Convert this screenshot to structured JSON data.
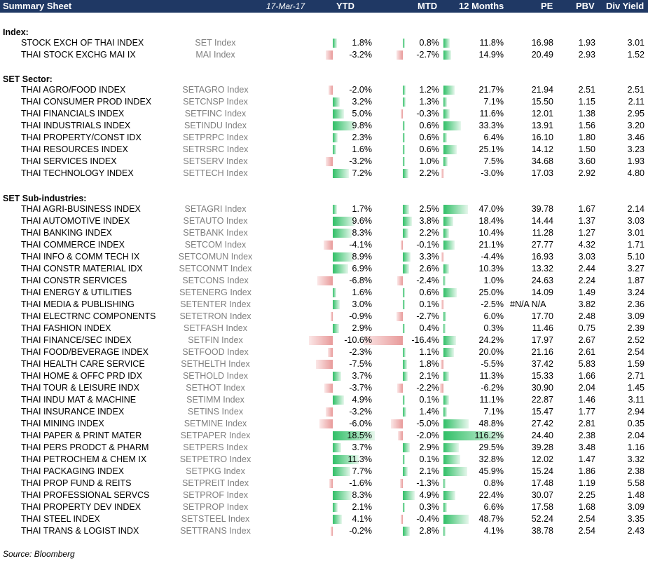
{
  "header": {
    "title": "Summary Sheet",
    "date": "17-Mar-17",
    "columns": [
      "YTD",
      "MTD",
      "12 Months",
      "PE",
      "PBV",
      "Div Yield"
    ]
  },
  "sections": [
    {
      "title": "Index:",
      "rows": [
        {
          "name": "STOCK EXCH OF THAI INDEX",
          "ticker": "SET Index",
          "ytd": "1.8%",
          "mtd": "0.8%",
          "m12": "11.8%",
          "pe": "16.98",
          "pbv": "1.93",
          "dy": "3.01"
        },
        {
          "name": "THAI STOCK EXCHG MAI IX",
          "ticker": "MAI Index",
          "ytd": "-3.2%",
          "mtd": "-2.7%",
          "m12": "14.9%",
          "pe": "20.49",
          "pbv": "2.93",
          "dy": "1.52"
        }
      ]
    },
    {
      "title": "SET Sector:",
      "rows": [
        {
          "name": "THAI AGRO/FOOD INDEX",
          "ticker": "SETAGRO Index",
          "ytd": "-2.0%",
          "mtd": "1.2%",
          "m12": "21.7%",
          "pe": "21.94",
          "pbv": "2.51",
          "dy": "2.51"
        },
        {
          "name": "THAI CONSUMER PROD INDEX",
          "ticker": "SETCNSP Index",
          "ytd": "3.2%",
          "mtd": "1.3%",
          "m12": "7.1%",
          "pe": "15.50",
          "pbv": "1.15",
          "dy": "2.11"
        },
        {
          "name": "THAI FINANCIALS INDEX",
          "ticker": "SETFINC Index",
          "ytd": "5.0%",
          "mtd": "-0.3%",
          "m12": "11.6%",
          "pe": "12.01",
          "pbv": "1.38",
          "dy": "2.95"
        },
        {
          "name": "THAI INDUSTRIALS INDEX",
          "ticker": "SETINDU Index",
          "ytd": "9.8%",
          "mtd": "0.6%",
          "m12": "33.3%",
          "pe": "13.91",
          "pbv": "1.56",
          "dy": "3.20"
        },
        {
          "name": "THAI PROPERTY/CONST IDX",
          "ticker": "SETPRPC Index",
          "ytd": "2.3%",
          "mtd": "0.6%",
          "m12": "6.4%",
          "pe": "16.10",
          "pbv": "1.80",
          "dy": "3.46"
        },
        {
          "name": "THAI RESOURCES INDEX",
          "ticker": "SETRSRC Index",
          "ytd": "1.6%",
          "mtd": "0.6%",
          "m12": "25.1%",
          "pe": "14.12",
          "pbv": "1.50",
          "dy": "3.23"
        },
        {
          "name": "THAI SERVICES INDEX",
          "ticker": "SETSERV Index",
          "ytd": "-3.2%",
          "mtd": "1.0%",
          "m12": "7.5%",
          "pe": "34.68",
          "pbv": "3.60",
          "dy": "1.93"
        },
        {
          "name": "THAI TECHNOLOGY INDEX",
          "ticker": "SETTECH Index",
          "ytd": "7.2%",
          "mtd": "2.2%",
          "m12": "-3.0%",
          "pe": "17.03",
          "pbv": "2.92",
          "dy": "4.80"
        }
      ]
    },
    {
      "title": "SET Sub-industries:",
      "rows": [
        {
          "name": "THAI AGRI-BUSINESS INDEX",
          "ticker": "SETAGRI Index",
          "ytd": "1.7%",
          "mtd": "2.5%",
          "m12": "47.0%",
          "pe": "39.78",
          "pbv": "1.67",
          "dy": "2.14"
        },
        {
          "name": "THAI AUTOMOTIVE INDEX",
          "ticker": "SETAUTO Index",
          "ytd": "9.6%",
          "mtd": "3.8%",
          "m12": "18.4%",
          "pe": "14.44",
          "pbv": "1.37",
          "dy": "3.03"
        },
        {
          "name": "THAI BANKING INDEX",
          "ticker": "SETBANK Index",
          "ytd": "8.3%",
          "mtd": "2.2%",
          "m12": "10.4%",
          "pe": "11.28",
          "pbv": "1.27",
          "dy": "3.01"
        },
        {
          "name": "THAI COMMERCE INDEX",
          "ticker": "SETCOM Index",
          "ytd": "-4.1%",
          "mtd": "-0.1%",
          "m12": "21.1%",
          "pe": "27.77",
          "pbv": "4.32",
          "dy": "1.71"
        },
        {
          "name": "THAI INFO & COMM TECH IX",
          "ticker": "SETCOMUN Index",
          "ytd": "8.9%",
          "mtd": "3.3%",
          "m12": "-4.4%",
          "pe": "16.93",
          "pbv": "3.03",
          "dy": "5.10"
        },
        {
          "name": "THAI CONSTR MATERIAL IDX",
          "ticker": "SETCONMT Index",
          "ytd": "6.9%",
          "mtd": "2.6%",
          "m12": "10.3%",
          "pe": "13.32",
          "pbv": "2.44",
          "dy": "3.27"
        },
        {
          "name": "THAI CONSTR SERVICES",
          "ticker": "SETCONS Index",
          "ytd": "-6.8%",
          "mtd": "-2.4%",
          "m12": "1.0%",
          "pe": "24.63",
          "pbv": "2.24",
          "dy": "1.87"
        },
        {
          "name": "THAI ENERGY & UTILITIES",
          "ticker": "SETENERG Index",
          "ytd": "1.6%",
          "mtd": "0.6%",
          "m12": "25.0%",
          "pe": "14.09",
          "pbv": "1.49",
          "dy": "3.24"
        },
        {
          "name": "THAI MEDIA & PUBLISHING",
          "ticker": "SETENTER Index",
          "ytd": "3.0%",
          "mtd": "0.1%",
          "m12": "-2.5%",
          "pe": "#N/A N/A",
          "pbv": "3.82",
          "dy": "2.36"
        },
        {
          "name": "THAI ELECTRNC COMPONENTS",
          "ticker": "SETETRON Index",
          "ytd": "-0.9%",
          "mtd": "-2.7%",
          "m12": "6.0%",
          "pe": "17.70",
          "pbv": "2.48",
          "dy": "3.09"
        },
        {
          "name": "THAI FASHION INDEX",
          "ticker": "SETFASH Index",
          "ytd": "2.9%",
          "mtd": "0.4%",
          "m12": "0.3%",
          "pe": "11.46",
          "pbv": "0.75",
          "dy": "2.39"
        },
        {
          "name": "THAI FINANCE/SEC INDEX",
          "ticker": "SETFIN Index",
          "ytd": "-10.6%",
          "mtd": "-16.4%",
          "m12": "24.2%",
          "pe": "17.97",
          "pbv": "2.67",
          "dy": "2.52"
        },
        {
          "name": "THAI FOOD/BEVERAGE INDEX",
          "ticker": "SETFOOD Index",
          "ytd": "-2.3%",
          "mtd": "1.1%",
          "m12": "20.0%",
          "pe": "21.16",
          "pbv": "2.61",
          "dy": "2.54"
        },
        {
          "name": "THAI HEALTH CARE SERVICE",
          "ticker": "SETHELTH Index",
          "ytd": "-7.5%",
          "mtd": "1.8%",
          "m12": "-5.5%",
          "pe": "37.42",
          "pbv": "5.83",
          "dy": "1.59"
        },
        {
          "name": "THAI HOME & OFFC PRD IDX",
          "ticker": "SETHOLD Index",
          "ytd": "3.7%",
          "mtd": "2.1%",
          "m12": "11.3%",
          "pe": "15.33",
          "pbv": "1.66",
          "dy": "2.71"
        },
        {
          "name": "THAI TOUR & LEISURE INDX",
          "ticker": "SETHOT Index",
          "ytd": "-3.7%",
          "mtd": "-2.2%",
          "m12": "-6.2%",
          "pe": "30.90",
          "pbv": "2.04",
          "dy": "1.45"
        },
        {
          "name": "THAI INDU MAT & MACHINE",
          "ticker": "SETIMM Index",
          "ytd": "4.9%",
          "mtd": "0.1%",
          "m12": "11.1%",
          "pe": "22.87",
          "pbv": "1.46",
          "dy": "3.11"
        },
        {
          "name": "THAI INSURANCE INDEX",
          "ticker": "SETINS Index",
          "ytd": "-3.2%",
          "mtd": "1.4%",
          "m12": "7.1%",
          "pe": "15.47",
          "pbv": "1.77",
          "dy": "2.94"
        },
        {
          "name": "THAI MINING INDEX",
          "ticker": "SETMINE Index",
          "ytd": "-6.0%",
          "mtd": "-5.0%",
          "m12": "48.8%",
          "pe": "27.42",
          "pbv": "2.81",
          "dy": "0.35"
        },
        {
          "name": "THAI PAPER & PRINT MATER",
          "ticker": "SETPAPER Index",
          "ytd": "18.5%",
          "mtd": "-2.0%",
          "m12": "116.2%",
          "pe": "24.40",
          "pbv": "2.38",
          "dy": "2.04"
        },
        {
          "name": "THAI PERS PRODCT & PHARM",
          "ticker": "SETPERS Index",
          "ytd": "3.7%",
          "mtd": "2.9%",
          "m12": "29.5%",
          "pe": "39.28",
          "pbv": "3.48",
          "dy": "1.16"
        },
        {
          "name": "THAI PETROCHEM & CHEM IX",
          "ticker": "SETPETRO Index",
          "ytd": "11.3%",
          "mtd": "0.1%",
          "m12": "32.8%",
          "pe": "12.02",
          "pbv": "1.47",
          "dy": "3.32"
        },
        {
          "name": "THAI PACKAGING INDEX",
          "ticker": "SETPKG Index",
          "ytd": "7.7%",
          "mtd": "2.1%",
          "m12": "45.9%",
          "pe": "15.24",
          "pbv": "1.86",
          "dy": "2.38"
        },
        {
          "name": "THAI PROP FUND & REITS",
          "ticker": "SETPREIT Index",
          "ytd": "-1.6%",
          "mtd": "-1.3%",
          "m12": "0.8%",
          "pe": "17.48",
          "pbv": "1.19",
          "dy": "5.58"
        },
        {
          "name": "THAI PROFESSIONAL SERVCS",
          "ticker": "SETPROF Index",
          "ytd": "8.3%",
          "mtd": "4.9%",
          "m12": "22.4%",
          "pe": "30.07",
          "pbv": "2.25",
          "dy": "1.48"
        },
        {
          "name": "THAI PROPERTY DEV INDEX",
          "ticker": "SETPROP Index",
          "ytd": "2.1%",
          "mtd": "0.3%",
          "m12": "6.6%",
          "pe": "17.58",
          "pbv": "1.68",
          "dy": "3.09"
        },
        {
          "name": "THAI STEEL INDEX",
          "ticker": "SETSTEEL Index",
          "ytd": "4.1%",
          "mtd": "-0.4%",
          "m12": "48.7%",
          "pe": "52.24",
          "pbv": "2.54",
          "dy": "3.35"
        },
        {
          "name": "THAI TRANS & LOGIST INDX",
          "ticker": "SETTRANS Index",
          "ytd": "-0.2%",
          "mtd": "2.8%",
          "m12": "4.1%",
          "pe": "38.78",
          "pbv": "2.54",
          "dy": "2.43"
        }
      ]
    }
  ],
  "source": "Source: Bloomberg",
  "colors": {
    "header_bg": "#1f3864",
    "positive_bar": "#2fbf66",
    "negative_bar": "#e89a9a",
    "ticker_text": "#7f7f7f"
  }
}
